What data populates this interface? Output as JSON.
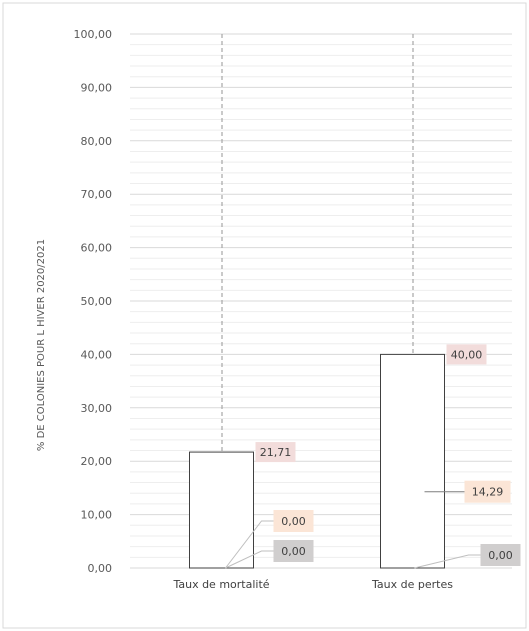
{
  "chart_data": {
    "type": "bar",
    "title": "",
    "xlabel": "",
    "ylabel": "% DE COLONIES POUR L HIVER 2020/2021",
    "ylim": [
      0,
      100
    ],
    "yticks": [
      "0,00",
      "10,00",
      "20,00",
      "30,00",
      "40,00",
      "50,00",
      "60,00",
      "70,00",
      "80,00",
      "90,00",
      "100,00"
    ],
    "categories": [
      "Taux de mortalité",
      "Taux de pertes"
    ],
    "values": [
      21.71,
      40.0
    ],
    "value_labels": [
      "21,71",
      "40,00"
    ],
    "secondary_labels": [
      [
        {
          "label": "0,00",
          "value": 0,
          "color": "#fbe5d6"
        },
        {
          "label": "0,00",
          "value": 0,
          "color": "#d0cece"
        }
      ],
      [
        {
          "label": "14,29",
          "value": 14.29,
          "color": "#fbe5d6"
        },
        {
          "label": "0,00",
          "value": 0,
          "color": "#d0cece"
        }
      ]
    ],
    "value_label_color": "#f2dcdb",
    "bar_fill": "#ffffff",
    "bar_stroke": "#404040",
    "gridlines": true,
    "minor_gridlines": true,
    "legend": "none"
  }
}
